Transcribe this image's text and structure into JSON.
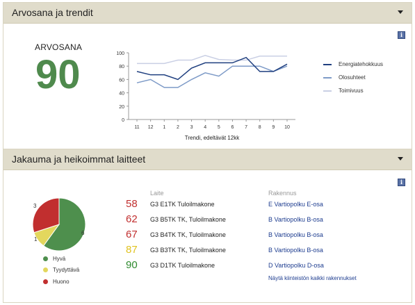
{
  "sections": {
    "grade_trend": {
      "title": "Arvosana ja trendit"
    },
    "distribution": {
      "title": "Jakauma ja heikoimmat laitteet"
    }
  },
  "grade": {
    "label": "ARVOSANA",
    "value": "90",
    "color": "#4f8a4d"
  },
  "icons": {
    "info": "info-icon",
    "collapse": "chevron-down-icon",
    "info_glyph": "i"
  },
  "chart_data": [
    {
      "type": "line",
      "categories": [
        "11",
        "12",
        "1",
        "2",
        "3",
        "4",
        "5",
        "6",
        "7",
        "8",
        "9",
        "10"
      ],
      "ylim": [
        0,
        100
      ],
      "yticks": [
        "0",
        "20",
        "40",
        "60",
        "80",
        "100"
      ],
      "xlabel": "Trendi, edeltävät 12kk",
      "grid": false,
      "legend_position": "right",
      "series": [
        {
          "name": "Energiatehokkuus",
          "color": "#1f3f7f",
          "values": [
            72,
            67,
            67,
            60,
            77,
            85,
            85,
            85,
            93,
            72,
            72,
            83
          ]
        },
        {
          "name": "Olosuhteet",
          "color": "#7d9ac7",
          "values": [
            55,
            60,
            48,
            48,
            60,
            70,
            65,
            80,
            80,
            80,
            72,
            80
          ]
        },
        {
          "name": "Toimivuus",
          "color": "#c9cfe4",
          "values": [
            84,
            84,
            84,
            89,
            89,
            96,
            90,
            89,
            89,
            95,
            95,
            95
          ]
        }
      ]
    },
    {
      "type": "pie",
      "labels": [
        "Hyvä",
        "Tyydyttävä",
        "Huono"
      ],
      "values": [
        6,
        1,
        3
      ],
      "colors": [
        "#4e8f4d",
        "#e3d75d",
        "#c12f2f"
      ]
    }
  ],
  "weakest": {
    "device_header": "Laite",
    "building_header": "Rakennus",
    "rows": [
      {
        "score": "58",
        "color": "#c12f2f",
        "device": "G3 E1TK Tuloilmakone",
        "building": "E Vartiopolku E-osa"
      },
      {
        "score": "62",
        "color": "#c12f2f",
        "device": "G3 B5TK TK, Tuloilmakone",
        "building": "B Vartiopolku B-osa"
      },
      {
        "score": "67",
        "color": "#c12f2f",
        "device": "G3 B4TK TK, Tuloilmakone",
        "building": "B Vartiopolku B-osa"
      },
      {
        "score": "87",
        "color": "#e0c21f",
        "device": "G3 B3TK TK, Tuloilmakone",
        "building": "B Vartiopolku B-osa"
      },
      {
        "score": "90",
        "color": "#2e8a2e",
        "device": "G3 D1TK Tuloilmakone",
        "building": "D Vartiopolku D-osa"
      }
    ],
    "all_link": "Näytä kiinteistön kaikki rakennukset"
  }
}
